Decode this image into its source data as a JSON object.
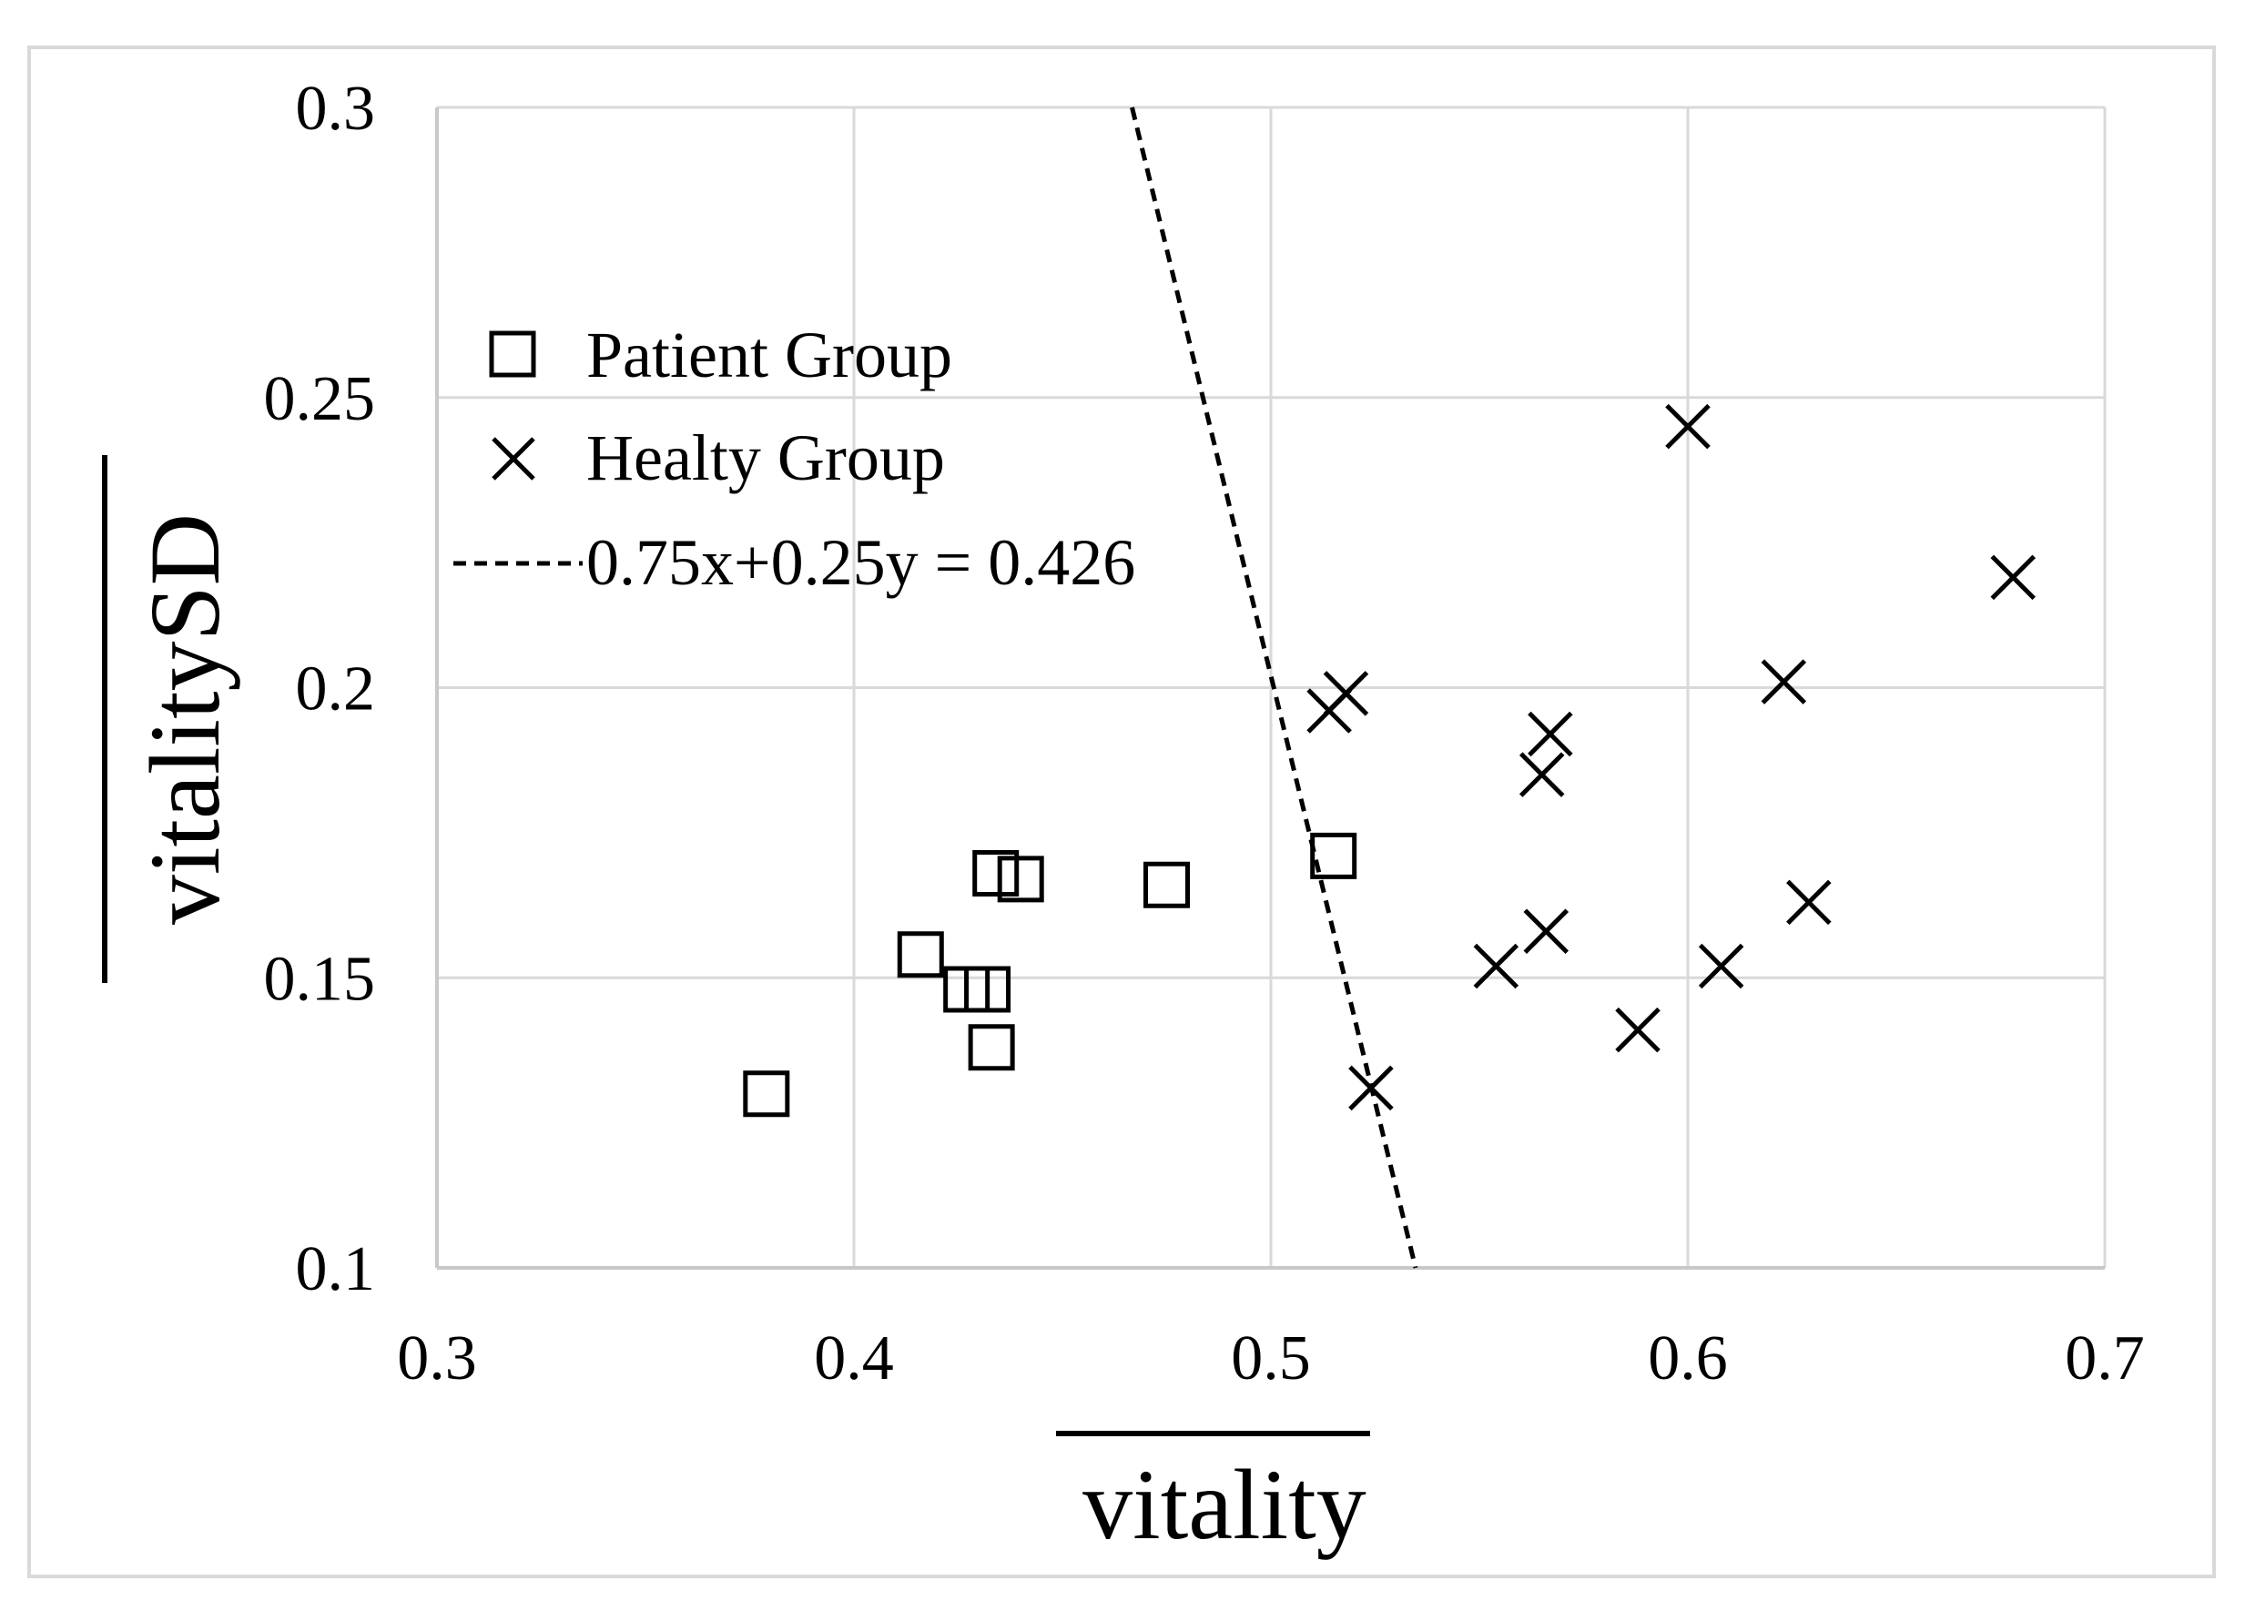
{
  "chart_data": {
    "type": "scatter",
    "title": "",
    "xlabel": "vitality",
    "ylabel": "vitalitySD",
    "xlabel_overline": true,
    "ylabel_overline": true,
    "xlim": [
      0.3,
      0.7
    ],
    "ylim": [
      0.1,
      0.3
    ],
    "xticks": [
      0.3,
      0.4,
      0.5,
      0.6,
      0.7
    ],
    "yticks": [
      0.1,
      0.15,
      0.2,
      0.25,
      0.3
    ],
    "xtick_labels": [
      "0.3",
      "0.4",
      "0.5",
      "0.6",
      "0.7"
    ],
    "ytick_labels": [
      "0.1",
      "0.15",
      "0.2",
      "0.25",
      "0.3"
    ],
    "grid": true,
    "legend_position": "upper-left",
    "series": [
      {
        "name": "Patient Group",
        "marker": "square",
        "points": [
          {
            "x": 0.379,
            "y": 0.13
          },
          {
            "x": 0.416,
            "y": 0.154
          },
          {
            "x": 0.427,
            "y": 0.148
          },
          {
            "x": 0.432,
            "y": 0.148
          },
          {
            "x": 0.433,
            "y": 0.138
          },
          {
            "x": 0.434,
            "y": 0.168
          },
          {
            "x": 0.44,
            "y": 0.167
          },
          {
            "x": 0.475,
            "y": 0.166
          },
          {
            "x": 0.515,
            "y": 0.171
          }
        ]
      },
      {
        "name": "Healty Group",
        "marker": "x",
        "points": [
          {
            "x": 0.6,
            "y": 0.245
          },
          {
            "x": 0.678,
            "y": 0.219
          },
          {
            "x": 0.623,
            "y": 0.201
          },
          {
            "x": 0.518,
            "y": 0.199
          },
          {
            "x": 0.514,
            "y": 0.196
          },
          {
            "x": 0.567,
            "y": 0.192
          },
          {
            "x": 0.565,
            "y": 0.185
          },
          {
            "x": 0.629,
            "y": 0.163
          },
          {
            "x": 0.566,
            "y": 0.158
          },
          {
            "x": 0.554,
            "y": 0.152
          },
          {
            "x": 0.608,
            "y": 0.152
          },
          {
            "x": 0.588,
            "y": 0.141
          },
          {
            "x": 0.524,
            "y": 0.131
          }
        ]
      }
    ],
    "reference_line": {
      "name": "0.75x+0.25y = 0.426",
      "style": "dashed",
      "x": [
        0.4667,
        0.5347
      ],
      "y": [
        0.3,
        0.1
      ]
    }
  }
}
